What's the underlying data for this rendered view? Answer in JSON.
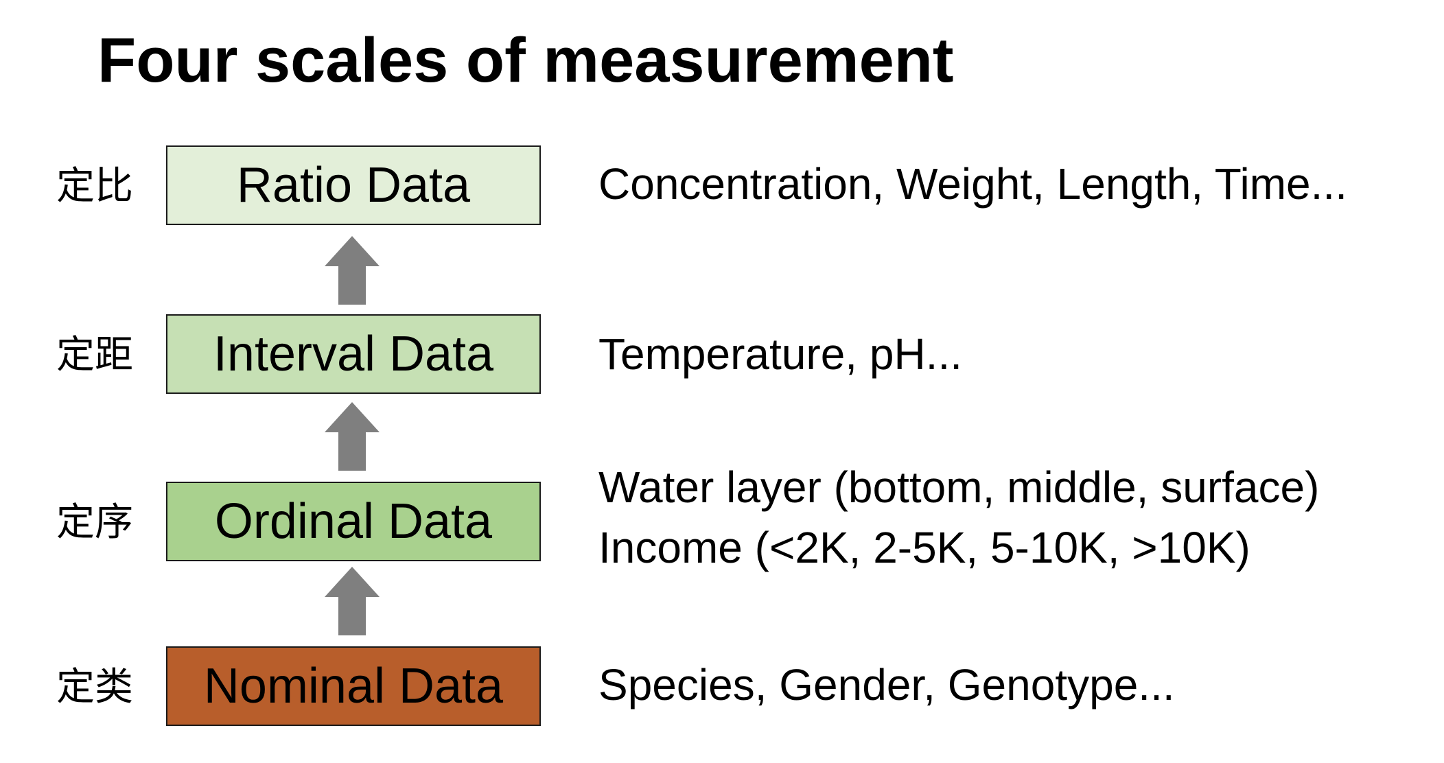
{
  "title": "Four scales of measurement",
  "levels": [
    {
      "cn_label": "定比",
      "name": "Ratio Data",
      "description_lines": [
        "Concentration, Weight, Length, Time..."
      ],
      "fill": "#e3efd9"
    },
    {
      "cn_label": "定距",
      "name": "Interval Data",
      "description_lines": [
        "Temperature, pH..."
      ],
      "fill": "#c6e0b4"
    },
    {
      "cn_label": "定序",
      "name": "Ordinal Data",
      "description_lines": [
        "Water layer (bottom, middle, surface)",
        "Income (<2K, 2-5K, 5-10K, >10K)"
      ],
      "fill": "#a9d18e"
    },
    {
      "cn_label": "定类",
      "name": "Nominal Data",
      "description_lines": [
        "Species, Gender, Genotype..."
      ],
      "fill": "#b85e2b"
    }
  ],
  "arrow_color": "#7f7f7f",
  "arrow_icon": "arrow-up-icon"
}
